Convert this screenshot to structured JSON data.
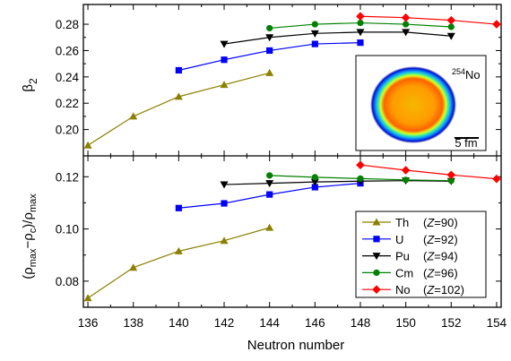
{
  "chart_data": {
    "type": "line",
    "xlabel": "Neutron number",
    "x_ticks": [
      136,
      138,
      140,
      142,
      144,
      146,
      148,
      150,
      152,
      154
    ],
    "xlim": [
      135.8,
      154.2
    ],
    "panels": [
      {
        "ylabel_parts": [
          "β",
          "2"
        ],
        "ylim": [
          0.18,
          0.295
        ],
        "y_ticks": [
          0.2,
          0.22,
          0.24,
          0.26,
          0.28
        ],
        "y_tick_labels": [
          "0.20",
          "0.22",
          "0.24",
          "0.26",
          "0.28"
        ],
        "series": [
          {
            "key": "Th",
            "x": [
              136,
              138,
              140,
              142,
              144
            ],
            "y": [
              0.188,
              0.21,
              0.225,
              0.234,
              0.243
            ]
          },
          {
            "key": "U",
            "x": [
              140,
              142,
              144,
              146,
              148
            ],
            "y": [
              0.245,
              0.253,
              0.26,
              0.265,
              0.266
            ]
          },
          {
            "key": "Pu",
            "x": [
              142,
              144,
              146,
              148,
              150,
              152
            ],
            "y": [
              0.265,
              0.27,
              0.273,
              0.274,
              0.274,
              0.271
            ]
          },
          {
            "key": "Cm",
            "x": [
              144,
              146,
              148,
              150,
              152
            ],
            "y": [
              0.277,
              0.28,
              0.281,
              0.28,
              0.278
            ]
          },
          {
            "key": "No",
            "x": [
              148,
              150,
              152,
              154
            ],
            "y": [
              0.286,
              0.285,
              0.283,
              0.28
            ]
          }
        ],
        "inset": {
          "nucleus_mass": "254",
          "nucleus_symbol": "No",
          "scale_label": "5 fm"
        }
      },
      {
        "ylabel_parts": [
          "(ρ",
          "max",
          "−ρ",
          "c",
          ")/ρ",
          "max"
        ],
        "ylim": [
          0.07,
          0.128
        ],
        "y_ticks": [
          0.08,
          0.1,
          0.12
        ],
        "y_tick_labels": [
          "0.08",
          "0.10",
          "0.12"
        ],
        "series": [
          {
            "key": "Th",
            "x": [
              136,
              138,
              140,
              142,
              144
            ],
            "y": [
              0.0735,
              0.0852,
              0.0915,
              0.0955,
              0.1005
            ]
          },
          {
            "key": "U",
            "x": [
              140,
              142,
              144,
              146,
              148
            ],
            "y": [
              0.108,
              0.1098,
              0.1132,
              0.116,
              0.1175
            ]
          },
          {
            "key": "Pu",
            "x": [
              142,
              144,
              146,
              148,
              150,
              152
            ],
            "y": [
              0.117,
              0.1175,
              0.118,
              0.1183,
              0.1185,
              0.1183
            ]
          },
          {
            "key": "Cm",
            "x": [
              144,
              146,
              148,
              150,
              152
            ],
            "y": [
              0.1205,
              0.1198,
              0.1193,
              0.1188,
              0.1185
            ]
          },
          {
            "key": "No",
            "x": [
              148,
              150,
              152,
              154
            ],
            "y": [
              0.1245,
              0.1225,
              0.1207,
              0.1192
            ]
          }
        ]
      }
    ],
    "series_info": [
      {
        "key": "Th",
        "name": "Th",
        "z_label": "Z",
        "z_value": "=90",
        "color": "#8b8000",
        "marker": "triangle-up"
      },
      {
        "key": "U",
        "name": "U",
        "z_label": "Z",
        "z_value": "=92",
        "color": "#0000ff",
        "marker": "square"
      },
      {
        "key": "Pu",
        "name": "Pu",
        "z_label": "Z",
        "z_value": "=94",
        "color": "#000000",
        "marker": "triangle-down"
      },
      {
        "key": "Cm",
        "name": "Cm",
        "z_label": "Z",
        "z_value": "=96",
        "color": "#008000",
        "marker": "circle"
      },
      {
        "key": "No",
        "name": "No",
        "z_label": "Z",
        "z_value": "=102",
        "color": "#ff0000",
        "marker": "diamond"
      }
    ],
    "legend_position": "bottom-right of lower panel"
  }
}
